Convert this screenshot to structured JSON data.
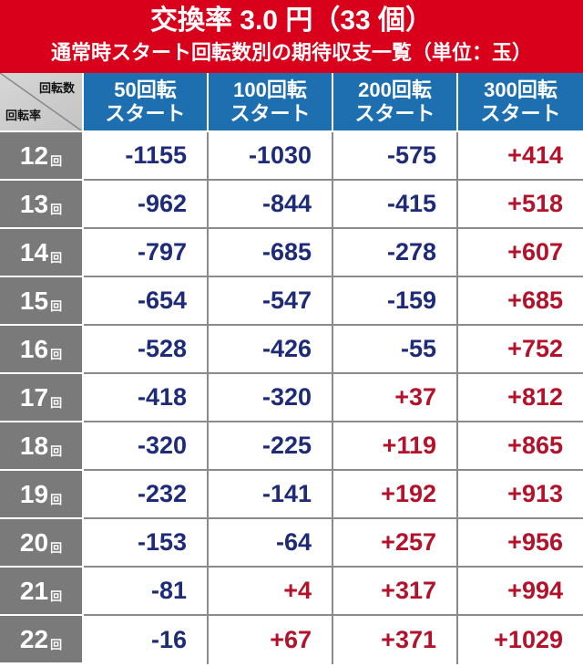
{
  "title": {
    "main": "交換率 3.0 円（33 個）",
    "sub": "通常時スタート回転数別の期待収支一覧（単位：玉）"
  },
  "corner": {
    "top_label": "回転数",
    "bottom_label": "回転率"
  },
  "columns": [
    "50回転\nスタート",
    "100回転\nスタート",
    "200回転\nスタート",
    "300回転\nスタート"
  ],
  "row_unit": "回",
  "rows": [
    {
      "rate": "12",
      "values": [
        "-1155",
        "-1030",
        "-575",
        "+414"
      ]
    },
    {
      "rate": "13",
      "values": [
        "-962",
        "-844",
        "-415",
        "+518"
      ]
    },
    {
      "rate": "14",
      "values": [
        "-797",
        "-685",
        "-278",
        "+607"
      ]
    },
    {
      "rate": "15",
      "values": [
        "-654",
        "-547",
        "-159",
        "+685"
      ]
    },
    {
      "rate": "16",
      "values": [
        "-528",
        "-426",
        "-55",
        "+752"
      ]
    },
    {
      "rate": "17",
      "values": [
        "-418",
        "-320",
        "+37",
        "+812"
      ]
    },
    {
      "rate": "18",
      "values": [
        "-320",
        "-225",
        "+119",
        "+865"
      ]
    },
    {
      "rate": "19",
      "values": [
        "-232",
        "-141",
        "+192",
        "+913"
      ]
    },
    {
      "rate": "20",
      "values": [
        "-153",
        "-64",
        "+257",
        "+956"
      ]
    },
    {
      "rate": "21",
      "values": [
        "-81",
        "+4",
        "+317",
        "+994"
      ]
    },
    {
      "rate": "22",
      "values": [
        "-16",
        "+67",
        "+371",
        "+1029"
      ]
    }
  ],
  "colors": {
    "title_bg": "#d9001b",
    "header_bg": "#1e6fb0",
    "row_head_bg": "#7a7a7a",
    "negative": "#1d2b78",
    "positive": "#b3122a"
  }
}
